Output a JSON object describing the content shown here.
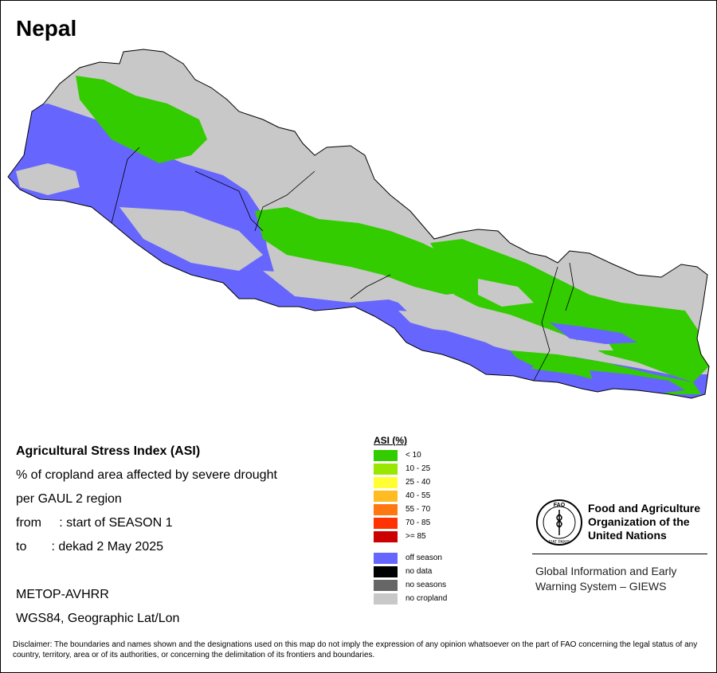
{
  "map": {
    "country": "Nepal",
    "colors": {
      "off_season": "#6666ff",
      "no_cropland": "#c8c8c8",
      "asi_low": "#33cc00",
      "border": "#000000"
    }
  },
  "info": {
    "title": "Agricultural Stress Index (ASI)",
    "line1": "% of cropland area affected by severe drought",
    "line2": "per GAUL 2 region",
    "from": "from     : start of SEASON 1",
    "to": "to       : dekad 2 May 2025",
    "sensor": "METOP-AVHRR",
    "projection": "WGS84, Geographic Lat/Lon"
  },
  "legend": {
    "title": "ASI (%)",
    "classes": [
      {
        "label": "< 10",
        "color": "#33cc00"
      },
      {
        "label": "10 - 25",
        "color": "#99e600"
      },
      {
        "label": "25 - 40",
        "color": "#ffff33"
      },
      {
        "label": "40 - 55",
        "color": "#ffbb22"
      },
      {
        "label": "55 - 70",
        "color": "#ff7711"
      },
      {
        "label": "70 - 85",
        "color": "#ff3300"
      },
      {
        "label": ">= 85",
        "color": "#cc0000"
      }
    ],
    "other": [
      {
        "label": "off season",
        "color": "#6666ff"
      },
      {
        "label": "no data",
        "color": "#000000"
      },
      {
        "label": "no seasons",
        "color": "#666666"
      },
      {
        "label": "no cropland",
        "color": "#c8c8c8"
      }
    ]
  },
  "fao": {
    "logo_text": "FAO",
    "logo_motto": "FIAT PANIS",
    "name_line1": "Food and Agriculture",
    "name_line2": "Organization of the",
    "name_line3": "United Nations",
    "giews_line1": "Global Information and Early",
    "giews_line2": "Warning System – GIEWS"
  },
  "disclaimer": "Disclaimer: The boundaries and names shown and the designations used on this map do not imply the expression of any opinion whatsoever on the part of FAO concerning the legal status of any country, territory, area or of its authorities, or concerning the delimitation of its frontiers and boundaries."
}
